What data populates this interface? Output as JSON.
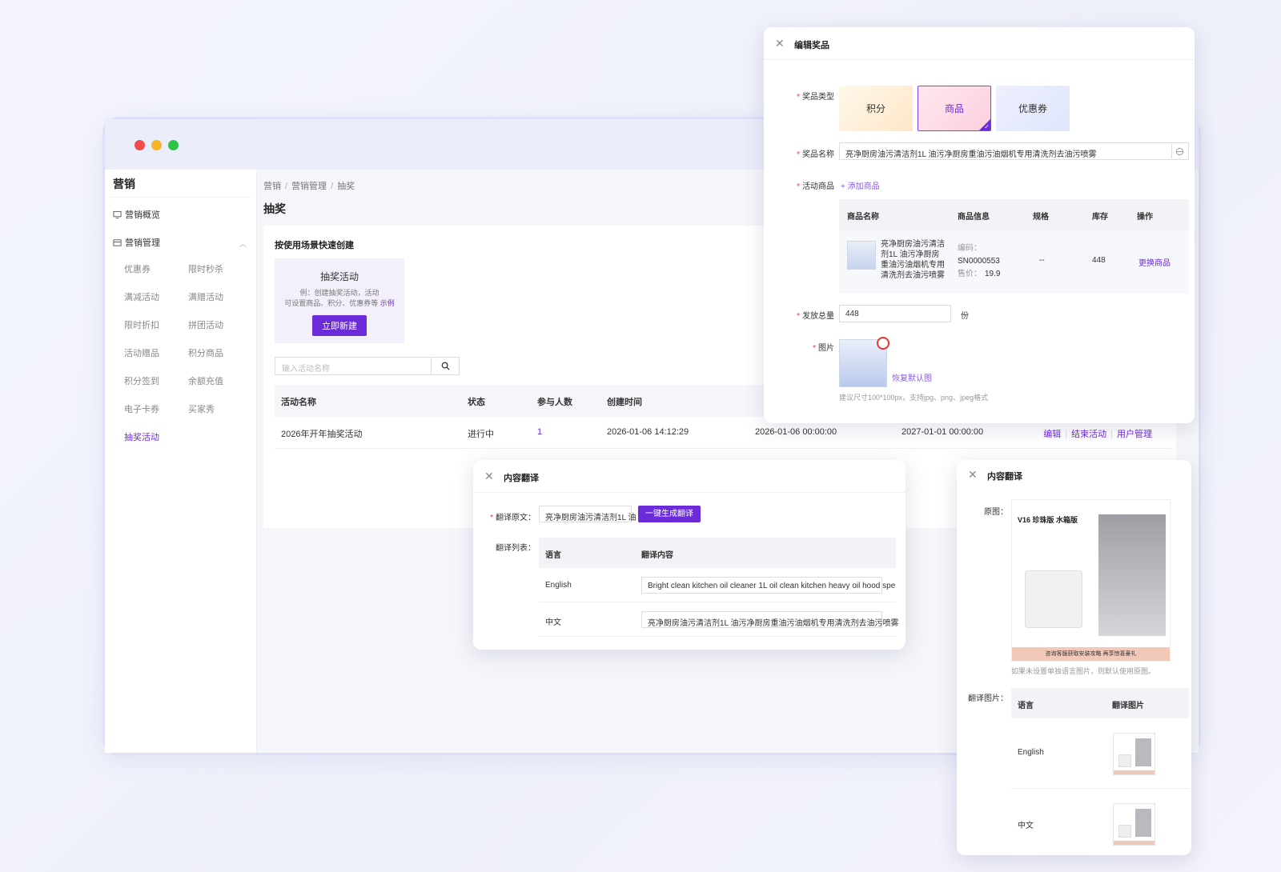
{
  "window": {
    "title": "营销",
    "sidebar": {
      "overview": "营销概览",
      "management": "营销管理",
      "sub_items": [
        [
          "优惠券",
          "限时秒杀"
        ],
        [
          "满减活动",
          "满赠活动"
        ],
        [
          "限时折扣",
          "拼团活动"
        ],
        [
          "活动赠品",
          "积分商品"
        ],
        [
          "积分签到",
          "余额充值"
        ],
        [
          "电子卡券",
          "买家秀"
        ],
        [
          "抽奖活动",
          ""
        ]
      ],
      "active": "抽奖活动"
    },
    "breadcrumb": [
      "营销",
      "营销管理",
      "抽奖"
    ],
    "page_title": "抽奖",
    "quick_create": {
      "title": "按使用场景快速创建",
      "card_title": "抽奖活动",
      "card_desc_1": "例：创建抽奖活动，活动",
      "card_desc_2": "可设置商品、积分、优惠券等",
      "card_link": "示例",
      "button": "立即新建"
    },
    "search_placeholder": "输入活动名称",
    "table": {
      "headers": [
        "活动名称",
        "状态",
        "参与人数",
        "创建时间"
      ],
      "rows": [
        {
          "name": "2026年开年抽奖活动",
          "status": "进行中",
          "participants": "1",
          "created": "2026-01-06 14:12:29",
          "start": "2026-01-06 00:00:00",
          "end": "2027-01-01 00:00:00",
          "ops": [
            "编辑",
            "结束活动",
            "用户管理"
          ]
        }
      ]
    }
  },
  "edit_prize": {
    "title": "编辑奖品",
    "type_label": "奖品类型",
    "types": [
      "积分",
      "商品",
      "优惠券"
    ],
    "selected_type": "商品",
    "name_label": "奖品名称",
    "name_value": "亮净厨房油污清洁剂1L 油污净厨房重油污油烟机专用清洗剂去油污喷雾",
    "goods_label": "活动商品",
    "add_goods": "+ 添加商品",
    "goods_headers": [
      "商品名称",
      "商品信息",
      "规格",
      "库存",
      "操作"
    ],
    "goods_row": {
      "name": "亮净厨房油污清洁剂1L 油污净厨房重油污油烟机专用清洗剂去油污喷雾",
      "code_label": "编码：",
      "code": "SN0000553",
      "price_label": "售价：",
      "price": "19.9",
      "spec": "--",
      "stock": "448",
      "op": "更换商品"
    },
    "total_label": "发放总量",
    "total_value": "448",
    "total_unit": "份",
    "image_label": "图片",
    "restore": "恢复默认图",
    "image_hint": "建议尺寸100*100px，支持jpg、png、jpeg格式"
  },
  "translate": {
    "title": "内容翻译",
    "source_label": "翻译原文：",
    "source_value": "亮净厨房油污清洁剂1L 油",
    "generate_btn": "一键生成翻译",
    "list_label": "翻译列表：",
    "headers": [
      "语言",
      "翻译内容"
    ],
    "rows": [
      {
        "lang": "English",
        "text": "Bright clean kitchen oil cleaner 1L oil clean kitchen heavy oil hood spe"
      },
      {
        "lang": "中文",
        "text": "亮净厨房油污清洁剂1L 油污净厨房重油污油烟机专用清洗剂去油污喷雾"
      }
    ]
  },
  "translate_image": {
    "title": "内容翻译",
    "original_label": "原图：",
    "original_title": "V16 珍珠版 水箱版",
    "original_strip": "咨询客服获取安装攻略 再享惊喜豪礼",
    "hint": "如果未设置单独语言图片，则默认使用原图。",
    "list_label": "翻译图片：",
    "headers": [
      "语言",
      "翻译图片"
    ],
    "rows": [
      {
        "lang": "English"
      },
      {
        "lang": "中文"
      }
    ]
  },
  "colors": {
    "accent": "#6b2bd8",
    "required": "#e33333"
  }
}
